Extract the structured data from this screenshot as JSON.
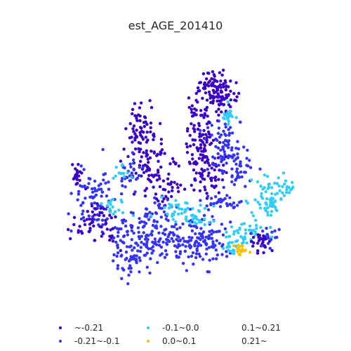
{
  "map": {
    "title": "est_AGE_201410"
  },
  "legend": {
    "items": [
      {
        "label": "~-0.21",
        "color": "#3a00c4"
      },
      {
        "label": "-0.21~-0.1",
        "color": "#3434f2"
      },
      {
        "label": "-0.1~0.0",
        "color": "#33ccf5"
      },
      {
        "label": "0.0~0.1",
        "color": "#f5c400"
      },
      {
        "label": "0.1~0.21",
        "color": ""
      },
      {
        "label": "0.21~",
        "color": ""
      }
    ]
  }
}
